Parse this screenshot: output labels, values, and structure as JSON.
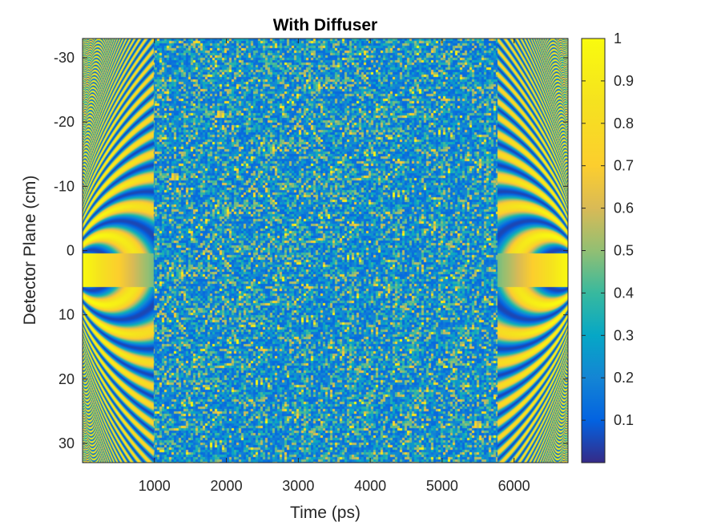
{
  "chart_data": {
    "type": "heatmap",
    "title": "With Diffuser",
    "xlabel": "Time (ps)",
    "ylabel": "Detector Plane (cm)",
    "xlim": [
      0,
      6750
    ],
    "ylim": [
      -33,
      33
    ],
    "y_reversed": true,
    "xticks": [
      1000,
      2000,
      3000,
      4000,
      5000,
      6000
    ],
    "yticks": [
      -30,
      -20,
      -10,
      0,
      10,
      20,
      30
    ],
    "colorbar": {
      "colormap": "parula",
      "range": [
        0,
        1
      ],
      "ticks": [
        0.1,
        0.2,
        0.3,
        0.4,
        0.5,
        0.6,
        0.7,
        0.8,
        0.9,
        1
      ],
      "tick_labels": [
        "0.1",
        "0.2",
        "0.3",
        "0.4",
        "0.5",
        "0.6",
        "0.7",
        "0.8",
        "0.9",
        "1"
      ]
    },
    "grid": false
  }
}
